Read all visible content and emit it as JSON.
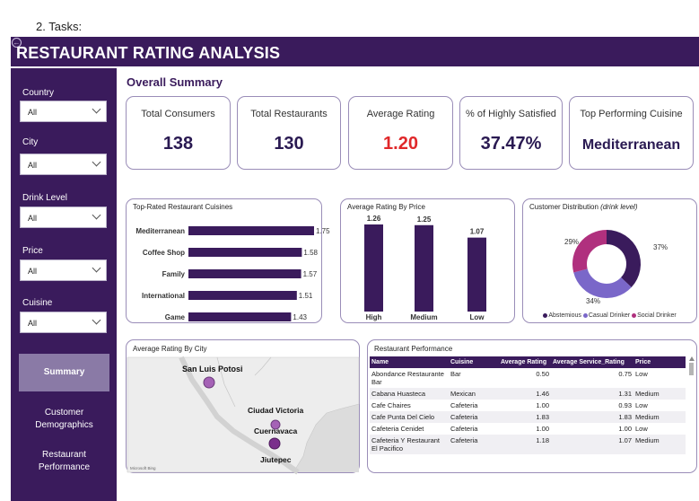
{
  "doc_label": "2.   Tasks:",
  "app": {
    "title": "RESTAURANT RATING ANALYSIS"
  },
  "filters": [
    {
      "label": "Country",
      "value": "All"
    },
    {
      "label": "City",
      "value": "All"
    },
    {
      "label": "Drink Level",
      "value": "All"
    },
    {
      "label": "Price",
      "value": "All"
    },
    {
      "label": "Cuisine",
      "value": "All"
    }
  ],
  "nav": [
    {
      "label": "Summary",
      "active": true
    },
    {
      "label": "Customer Demographics",
      "active": false
    },
    {
      "label": "Restaurant Performance",
      "active": false
    }
  ],
  "section_title": "Overall Summary",
  "kpis": [
    {
      "label": "Total Consumers",
      "value": "138"
    },
    {
      "label": "Total Restaurants",
      "value": "130"
    },
    {
      "label": "Average Rating",
      "value": "1.20",
      "color": "#e0282a"
    },
    {
      "label": "% of Highly Satisfied",
      "value": "37.47%"
    },
    {
      "label": "Top Performing Cuisine",
      "value": "Mediterranean"
    }
  ],
  "chart_data": [
    {
      "type": "bar",
      "orientation": "horizontal",
      "title": "Top-Rated Restaurant Cuisines",
      "categories": [
        "Mediterranean",
        "Coffee Shop",
        "Family",
        "International",
        "Game"
      ],
      "values": [
        1.75,
        1.58,
        1.57,
        1.51,
        1.43
      ],
      "labels": [
        "1.75",
        "1.58",
        "1.57",
        "1.51",
        "1.43"
      ],
      "xlim": [
        0,
        1.75
      ],
      "color": "#3a1b5c"
    },
    {
      "type": "bar",
      "title": "Average Rating By Price",
      "categories": [
        "High",
        "Medium",
        "Low"
      ],
      "values": [
        1.26,
        1.25,
        1.07
      ],
      "labels": [
        "1.26",
        "1.25",
        "1.07"
      ],
      "ylim": [
        0,
        1.26
      ],
      "color": "#3a1b5c"
    },
    {
      "type": "pie",
      "donut": true,
      "title": "Customer Distribution",
      "title_note": "(drink level)",
      "categories": [
        "Abstemious",
        "Casual Drinker",
        "Social Drinker"
      ],
      "values": [
        37,
        34,
        29
      ],
      "labels": [
        "37%",
        "34%",
        "29%"
      ],
      "colors": [
        "#3a1b5c",
        "#7a67c9",
        "#b0307e"
      ],
      "legend": "bottom"
    }
  ],
  "map_card": {
    "title": "Average Rating By City",
    "cities": [
      {
        "name": "San Luis Potosi"
      },
      {
        "name": "Ciudad Victoria"
      },
      {
        "name": "Cuernavaca"
      },
      {
        "name": "Jiutepec"
      }
    ],
    "attribution": "Microsoft Bing"
  },
  "table": {
    "title": "Restaurant Performance",
    "columns": [
      "Name",
      "Cuisine",
      "Average Rating",
      "Average Service_Rating",
      "Price"
    ],
    "rows": [
      [
        "Abondance Restaurante Bar",
        "Bar",
        "0.50",
        "0.75",
        "Low"
      ],
      [
        "Cabana Huasteca",
        "Mexican",
        "1.46",
        "1.31",
        "Medium"
      ],
      [
        "Cafe Chaires",
        "Cafeteria",
        "1.00",
        "0.93",
        "Low"
      ],
      [
        "Cafe Punta Del Cielo",
        "Cafeteria",
        "1.83",
        "1.83",
        "Medium"
      ],
      [
        "Cafeteria Cenidet",
        "Cafeteria",
        "1.00",
        "1.00",
        "Low"
      ],
      [
        "Cafeteria Y Restaurant El Pacifico",
        "Cafeteria",
        "1.18",
        "1.07",
        "Medium"
      ]
    ]
  },
  "colors": {
    "brand": "#3a1b5c",
    "accent_red": "#e0282a"
  }
}
